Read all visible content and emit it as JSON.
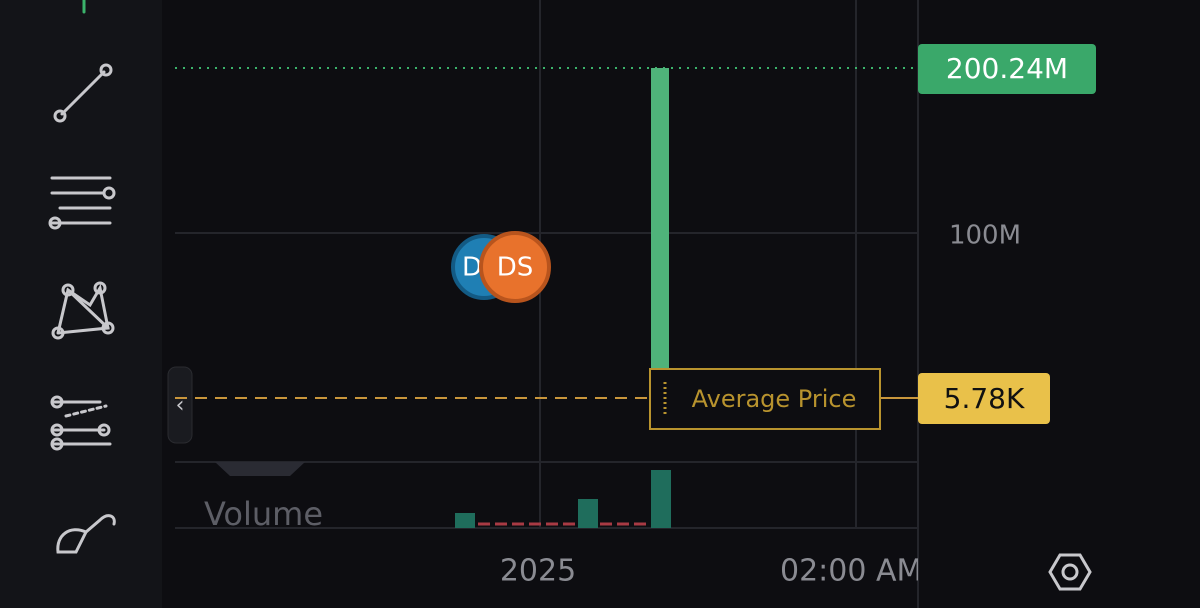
{
  "price_axis": {
    "ticks": [
      "100M"
    ]
  },
  "last_price_label": "200.24M",
  "average_price": {
    "label": "Average Price",
    "value": "5.78K"
  },
  "time_axis": {
    "ticks": [
      "2025",
      "02:00 AM"
    ]
  },
  "volume_label": "Volume",
  "markers": [
    "D",
    "DS"
  ]
}
